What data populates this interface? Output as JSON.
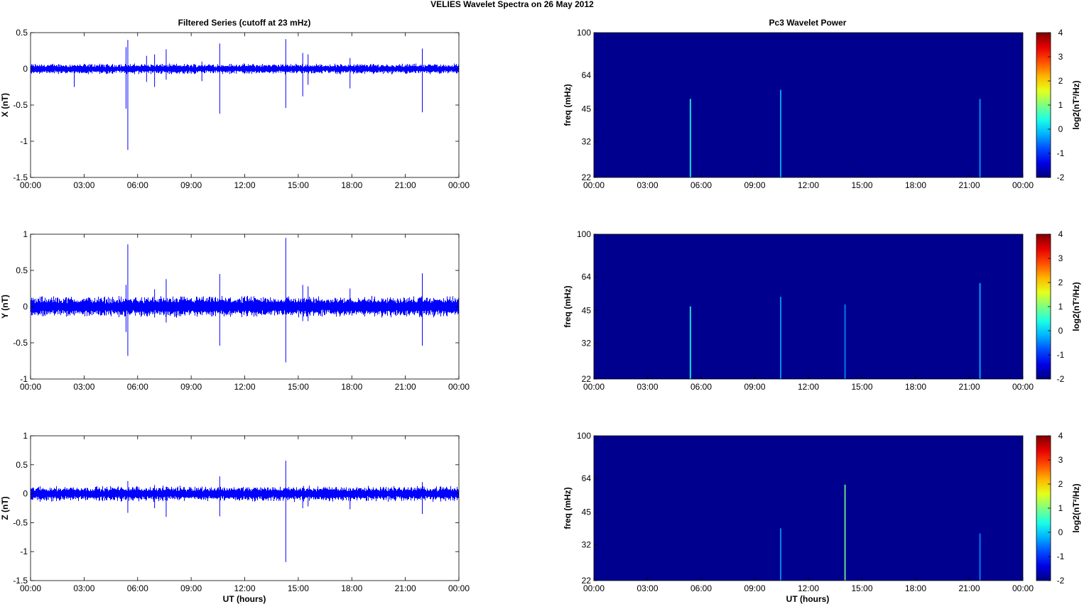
{
  "figure": {
    "title": "VELIES Wavelet Spectra on 26 May      2012",
    "left_title": "Filtered Series (cutoff at 23 mHz)",
    "right_title": "Pc3 Wavelet Power",
    "xlabel": "UT (hours)",
    "freq_label": "freq (mHz)",
    "colorbar_label": "log2(nT²/Hz)"
  },
  "chart_data": [
    {
      "type": "line",
      "ylabel": "X (nT)",
      "x_range_hours": [
        0,
        24
      ],
      "xticks": [
        "00:00",
        "03:00",
        "06:00",
        "09:00",
        "12:00",
        "15:00",
        "18:00",
        "21:00",
        "00:00"
      ],
      "ylim": [
        -1.5,
        0.5
      ],
      "yticks": [
        "0.5",
        "0",
        "-0.5",
        "-1",
        "-1.5"
      ],
      "ytick_values": [
        0.5,
        0,
        -0.5,
        -1,
        -1.5
      ],
      "noise_amplitude": 0.06,
      "spikes": [
        {
          "t": 2.45,
          "hi": 0.05,
          "lo": -0.25
        },
        {
          "t": 5.45,
          "hi": 0.4,
          "lo": -1.12
        },
        {
          "t": 5.35,
          "hi": 0.3,
          "lo": -0.55
        },
        {
          "t": 6.5,
          "hi": 0.18,
          "lo": -0.18
        },
        {
          "t": 6.95,
          "hi": 0.2,
          "lo": -0.25
        },
        {
          "t": 7.6,
          "hi": 0.27,
          "lo": -0.15
        },
        {
          "t": 9.6,
          "hi": 0.1,
          "lo": -0.17
        },
        {
          "t": 10.6,
          "hi": 0.35,
          "lo": -0.62
        },
        {
          "t": 14.3,
          "hi": 0.41,
          "lo": -0.54
        },
        {
          "t": 15.25,
          "hi": 0.22,
          "lo": -0.38
        },
        {
          "t": 15.55,
          "hi": 0.2,
          "lo": -0.22
        },
        {
          "t": 17.9,
          "hi": 0.15,
          "lo": -0.27
        },
        {
          "t": 21.95,
          "hi": 0.28,
          "lo": -0.6
        }
      ],
      "line_color": "#0000ff"
    },
    {
      "type": "line",
      "ylabel": "Y (nT)",
      "x_range_hours": [
        0,
        24
      ],
      "xticks": [
        "00:00",
        "03:00",
        "06:00",
        "09:00",
        "12:00",
        "15:00",
        "18:00",
        "21:00",
        "00:00"
      ],
      "ylim": [
        -1,
        1
      ],
      "yticks": [
        "1",
        "0.5",
        "0",
        "-0.5",
        "-1"
      ],
      "ytick_values": [
        1,
        0.5,
        0,
        -0.5,
        -1
      ],
      "noise_amplitude": 0.12,
      "spikes": [
        {
          "t": 5.45,
          "hi": 0.86,
          "lo": -0.68
        },
        {
          "t": 5.35,
          "hi": 0.3,
          "lo": -0.35
        },
        {
          "t": 6.95,
          "hi": 0.24,
          "lo": -0.15
        },
        {
          "t": 7.6,
          "hi": 0.38,
          "lo": -0.22
        },
        {
          "t": 10.6,
          "hi": 0.45,
          "lo": -0.54
        },
        {
          "t": 14.3,
          "hi": 0.95,
          "lo": -0.77
        },
        {
          "t": 15.25,
          "hi": 0.3,
          "lo": -0.2
        },
        {
          "t": 15.55,
          "hi": 0.28,
          "lo": -0.2
        },
        {
          "t": 17.9,
          "hi": 0.25,
          "lo": -0.1
        },
        {
          "t": 21.95,
          "hi": 0.46,
          "lo": -0.54
        }
      ],
      "line_color": "#0000ff"
    },
    {
      "type": "line",
      "ylabel": "Z (nT)",
      "x_range_hours": [
        0,
        24
      ],
      "xticks": [
        "00:00",
        "03:00",
        "06:00",
        "09:00",
        "12:00",
        "15:00",
        "18:00",
        "21:00",
        "00:00"
      ],
      "ylim": [
        -1.5,
        1
      ],
      "yticks": [
        "1",
        "0.5",
        "0",
        "-0.5",
        "-1",
        "-1.5"
      ],
      "ytick_values": [
        1,
        0.5,
        0,
        -0.5,
        -1,
        -1.5
      ],
      "noise_amplitude": 0.11,
      "spikes": [
        {
          "t": 5.45,
          "hi": 0.22,
          "lo": -0.33
        },
        {
          "t": 6.95,
          "hi": 0.15,
          "lo": -0.25
        },
        {
          "t": 7.6,
          "hi": 0.12,
          "lo": -0.4
        },
        {
          "t": 10.6,
          "hi": 0.3,
          "lo": -0.39
        },
        {
          "t": 14.3,
          "hi": 0.57,
          "lo": -1.18
        },
        {
          "t": 15.25,
          "hi": 0.1,
          "lo": -0.25
        },
        {
          "t": 15.55,
          "hi": 0.1,
          "lo": -0.22
        },
        {
          "t": 17.9,
          "hi": 0.1,
          "lo": -0.27
        },
        {
          "t": 21.95,
          "hi": 0.2,
          "lo": -0.35
        }
      ],
      "line_color": "#0000ff"
    },
    {
      "type": "heatmap",
      "ylabel": "freq (mHz)",
      "xticks": [
        "00:00",
        "03:00",
        "06:00",
        "09:00",
        "12:00",
        "15:00",
        "18:00",
        "21:00",
        "00:00"
      ],
      "ylim_mhz": [
        22,
        100
      ],
      "yticks": [
        "100",
        "64",
        "45",
        "32",
        "22"
      ],
      "ytick_values": [
        100,
        64,
        45,
        32,
        22
      ],
      "background_color": "#00008f",
      "streaks": [
        {
          "t": 5.4,
          "top_mhz": 50,
          "intensity": 0.55
        },
        {
          "t": 10.45,
          "top_mhz": 55,
          "intensity": 0.35
        },
        {
          "t": 21.6,
          "top_mhz": 50,
          "intensity": 0.3
        }
      ],
      "colorbar": {
        "min": -2,
        "max": 4,
        "ticks": [
          "4",
          "3",
          "2",
          "1",
          "0",
          "-1",
          "-2"
        ]
      }
    },
    {
      "type": "heatmap",
      "ylabel": "freq (mHz)",
      "xticks": [
        "00:00",
        "03:00",
        "06:00",
        "09:00",
        "12:00",
        "15:00",
        "18:00",
        "21:00",
        "00:00"
      ],
      "ylim_mhz": [
        22,
        100
      ],
      "yticks": [
        "100",
        "64",
        "45",
        "32",
        "22"
      ],
      "ytick_values": [
        100,
        64,
        45,
        32,
        22
      ],
      "background_color": "#00008f",
      "streaks": [
        {
          "t": 5.4,
          "top_mhz": 47,
          "intensity": 0.55
        },
        {
          "t": 10.45,
          "top_mhz": 52,
          "intensity": 0.3
        },
        {
          "t": 14.05,
          "top_mhz": 48,
          "intensity": 0.25
        },
        {
          "t": 21.6,
          "top_mhz": 60,
          "intensity": 0.35
        }
      ],
      "colorbar": {
        "min": -2,
        "max": 4,
        "ticks": [
          "4",
          "3",
          "2",
          "1",
          "0",
          "-1",
          "-2"
        ]
      }
    },
    {
      "type": "heatmap",
      "ylabel": "freq (mHz)",
      "xticks": [
        "00:00",
        "03:00",
        "06:00",
        "09:00",
        "12:00",
        "15:00",
        "18:00",
        "21:00",
        "00:00"
      ],
      "ylim_mhz": [
        22,
        100
      ],
      "yticks": [
        "100",
        "64",
        "45",
        "32",
        "22"
      ],
      "ytick_values": [
        100,
        64,
        45,
        32,
        22
      ],
      "background_color": "#00008f",
      "streaks": [
        {
          "t": 10.45,
          "top_mhz": 38,
          "intensity": 0.28
        },
        {
          "t": 14.05,
          "top_mhz": 60,
          "intensity": 0.75
        },
        {
          "t": 21.6,
          "top_mhz": 36,
          "intensity": 0.25
        }
      ],
      "colorbar": {
        "min": -2,
        "max": 4,
        "ticks": [
          "4",
          "3",
          "2",
          "1",
          "0",
          "-1",
          "-2"
        ]
      }
    }
  ]
}
